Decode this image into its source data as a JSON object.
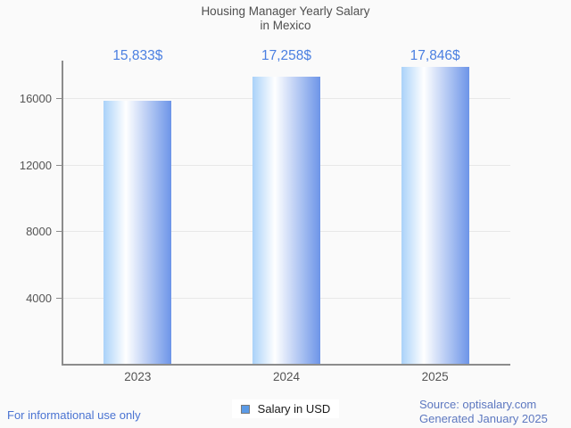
{
  "title": {
    "line1": "Housing Manager Yearly Salary",
    "line2": "in Mexico"
  },
  "chart_data": {
    "type": "bar",
    "title": "Housing Manager Yearly Salary in Mexico",
    "categories": [
      "2023",
      "2024",
      "2025"
    ],
    "series": [
      {
        "name": "Salary in USD",
        "values": [
          15833,
          17258,
          17846
        ]
      }
    ],
    "value_labels": [
      "15,833$",
      "17,258$",
      "17,846$"
    ],
    "xlabel": "",
    "ylabel": "",
    "y_ticks": [
      4000,
      8000,
      12000,
      16000
    ],
    "ylim": [
      0,
      18235
    ],
    "grid": true,
    "legend_position": "bottom-center",
    "bar_gradient": [
      "#aad2f9",
      "#ffffff",
      "#6d95e8"
    ]
  },
  "legend": {
    "label": "Salary in USD",
    "marker_color": "#5b9ae6"
  },
  "footer": {
    "left": "For informational use only",
    "source_line1": "Source: optisalary.com",
    "source_line2": "Generated January 2025"
  },
  "colors": {
    "background": "#fafafa",
    "title_text": "#4f4f4f",
    "axis_text": "#545454",
    "axis_line": "#8c8c8c",
    "gridline": "#e8e8e8",
    "value_label_text": "#4a7fe1",
    "footer_left_text": "#4a73d2",
    "footer_right_text": "#5d78c0"
  }
}
